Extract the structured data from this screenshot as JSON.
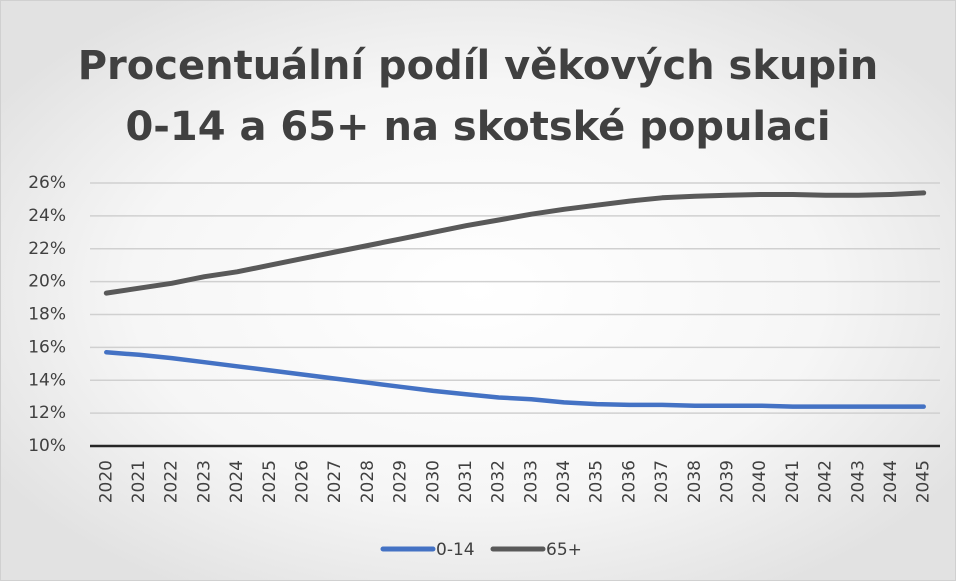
{
  "chart_data": {
    "type": "line",
    "title": [
      "Procentuální podíl věkových skupin",
      "0-14 a 65+ na skotské populaci"
    ],
    "categories": [
      "2020",
      "2021",
      "2022",
      "2023",
      "2024",
      "2025",
      "2026",
      "2027",
      "2028",
      "2029",
      "2030",
      "2031",
      "2032",
      "2033",
      "2034",
      "2035",
      "2036",
      "2037",
      "2038",
      "2039",
      "2040",
      "2041",
      "2042",
      "2043",
      "2044",
      "2045"
    ],
    "series": [
      {
        "name": "0-14",
        "color": "#4472c4",
        "values": [
          15.7,
          15.55,
          15.35,
          15.1,
          14.85,
          14.6,
          14.35,
          14.1,
          13.85,
          13.6,
          13.35,
          13.15,
          12.95,
          12.85,
          12.65,
          12.55,
          12.5,
          12.5,
          12.45,
          12.45,
          12.45,
          12.4,
          12.4,
          12.4,
          12.4,
          12.4
        ]
      },
      {
        "name": "65+",
        "color": "#595959",
        "values": [
          19.3,
          19.6,
          19.9,
          20.3,
          20.6,
          21.0,
          21.4,
          21.8,
          22.2,
          22.6,
          23.0,
          23.4,
          23.75,
          24.1,
          24.4,
          24.65,
          24.9,
          25.1,
          25.2,
          25.25,
          25.3,
          25.3,
          25.25,
          25.25,
          25.3,
          25.4
        ]
      }
    ],
    "ylim": [
      10,
      26
    ],
    "yticks": [
      {
        "value": 10,
        "label": "10%"
      },
      {
        "value": 12,
        "label": "12%"
      },
      {
        "value": 14,
        "label": "14%"
      },
      {
        "value": 16,
        "label": "16%"
      },
      {
        "value": 18,
        "label": "18%"
      },
      {
        "value": 20,
        "label": "20%"
      },
      {
        "value": 22,
        "label": "22%"
      },
      {
        "value": 24,
        "label": "24%"
      },
      {
        "value": 26,
        "label": "26%"
      }
    ],
    "grid": true,
    "legend": "bottom"
  }
}
